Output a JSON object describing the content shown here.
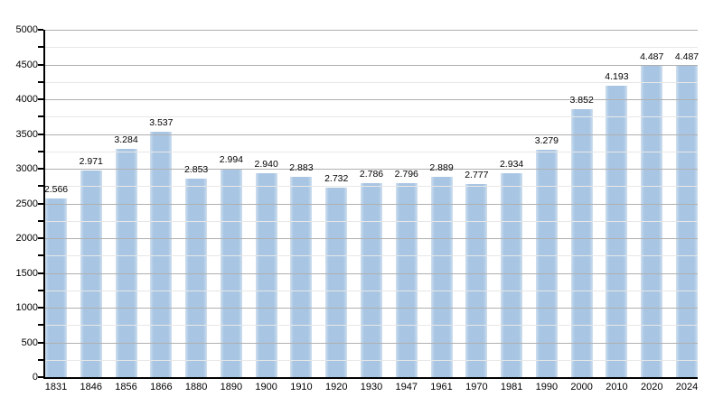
{
  "chart_data": {
    "type": "bar",
    "title": "",
    "xlabel": "",
    "ylabel": "",
    "categories": [
      "1831",
      "1846",
      "1856",
      "1866",
      "1880",
      "1890",
      "1900",
      "1910",
      "1920",
      "1930",
      "1947",
      "1961",
      "1970",
      "1981",
      "1990",
      "2000",
      "2010",
      "2020",
      "2024"
    ],
    "values": [
      2566,
      2971,
      3284,
      3537,
      2853,
      2994,
      2940,
      2883,
      2732,
      2786,
      2796,
      2889,
      2777,
      2934,
      3279,
      3852,
      4193,
      4487,
      4487
    ],
    "value_labels": [
      "2.566",
      "2.971",
      "3.284",
      "3.537",
      "2.853",
      "2.994",
      "2.940",
      "2.883",
      "2.732",
      "2.786",
      "2.796",
      "2.889",
      "2.777",
      "2.934",
      "3.279",
      "3.852",
      "4.193",
      "4.487",
      "4.487"
    ],
    "y_ticks": [
      0,
      500,
      1000,
      1500,
      2000,
      2500,
      3000,
      3500,
      4000,
      4500,
      5000
    ],
    "ylim": [
      0,
      5000
    ],
    "minor_step": 250,
    "major_step": 500,
    "grid": true,
    "legend_position": "none"
  },
  "colors": {
    "bar": "#a8c6e3",
    "bar_edge": "#cfdff0",
    "grid_major": "#b0b0b0",
    "grid_minor": "#e7e7e7",
    "axis": "#000000",
    "text": "#000000",
    "background": "#ffffff"
  }
}
